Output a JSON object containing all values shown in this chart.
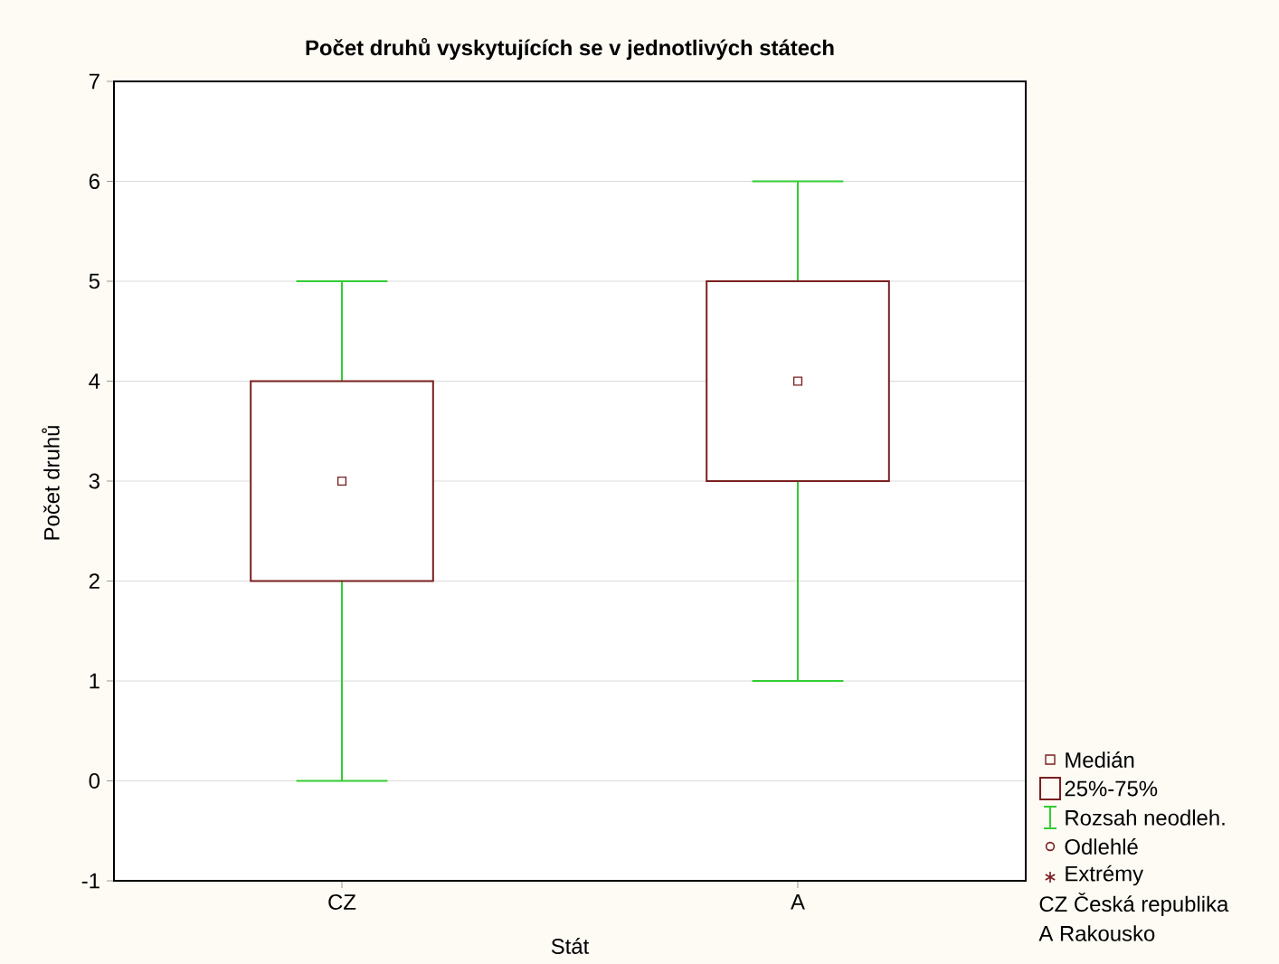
{
  "chart_data": {
    "type": "box",
    "title": "Počet druhů vyskytujících se v jednotlivých státech",
    "xlabel": "Stát",
    "ylabel": "Počet druhů",
    "categories": [
      "CZ",
      "A"
    ],
    "boxes": [
      {
        "low": 0,
        "q1": 2,
        "median": 3,
        "q3": 4,
        "high": 5
      },
      {
        "low": 1,
        "q1": 3,
        "median": 4,
        "q3": 5,
        "high": 6
      }
    ],
    "ylim": [
      -1,
      7
    ],
    "yticks": [
      -1,
      0,
      1,
      2,
      3,
      4,
      5,
      6,
      7
    ],
    "grid": "y",
    "annotations": [
      "Medián",
      "25%-75%",
      "Rozsah neodleh.",
      "Odlehlé",
      "Extrémy",
      "CZ Česká republika",
      "A  Rakousko"
    ]
  }
}
